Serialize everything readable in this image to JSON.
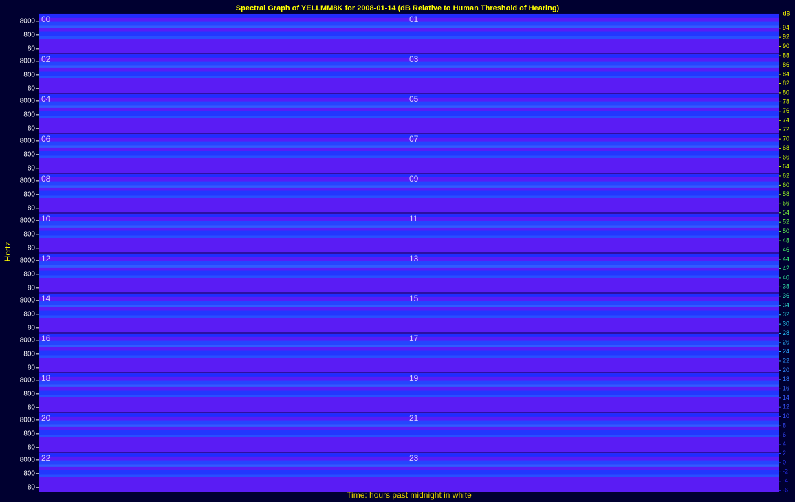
{
  "chart_data": {
    "type": "spectrogram",
    "title": "Spectral Graph of YELLMM8K for 2008-01-14 (dB Relative to Human Threshold of Hearing)",
    "ylabel": "Hertz",
    "xlabel": "Time: hours past midnight in white",
    "hours": [
      "00",
      "01",
      "02",
      "03",
      "04",
      "05",
      "06",
      "07",
      "08",
      "09",
      "10",
      "11",
      "12",
      "13",
      "14",
      "15",
      "16",
      "17",
      "18",
      "19",
      "20",
      "21",
      "22",
      "23"
    ],
    "log_scale": true,
    "ylim": [
      35,
      28000
    ],
    "yticks": [
      80,
      800,
      8000
    ],
    "colorbar": {
      "label": "dB",
      "lim": [
        -7,
        95
      ],
      "ticks": [
        94,
        92,
        90,
        88,
        86,
        84,
        82,
        80,
        78,
        76,
        74,
        72,
        70,
        68,
        66,
        64,
        62,
        60,
        58,
        56,
        54,
        52,
        50,
        48,
        46,
        44,
        42,
        40,
        38,
        36,
        34,
        32,
        30,
        28,
        26,
        24,
        22,
        20,
        18,
        16,
        14,
        12,
        10,
        8,
        6,
        4,
        2,
        0,
        -2,
        -4,
        -6
      ]
    }
  }
}
